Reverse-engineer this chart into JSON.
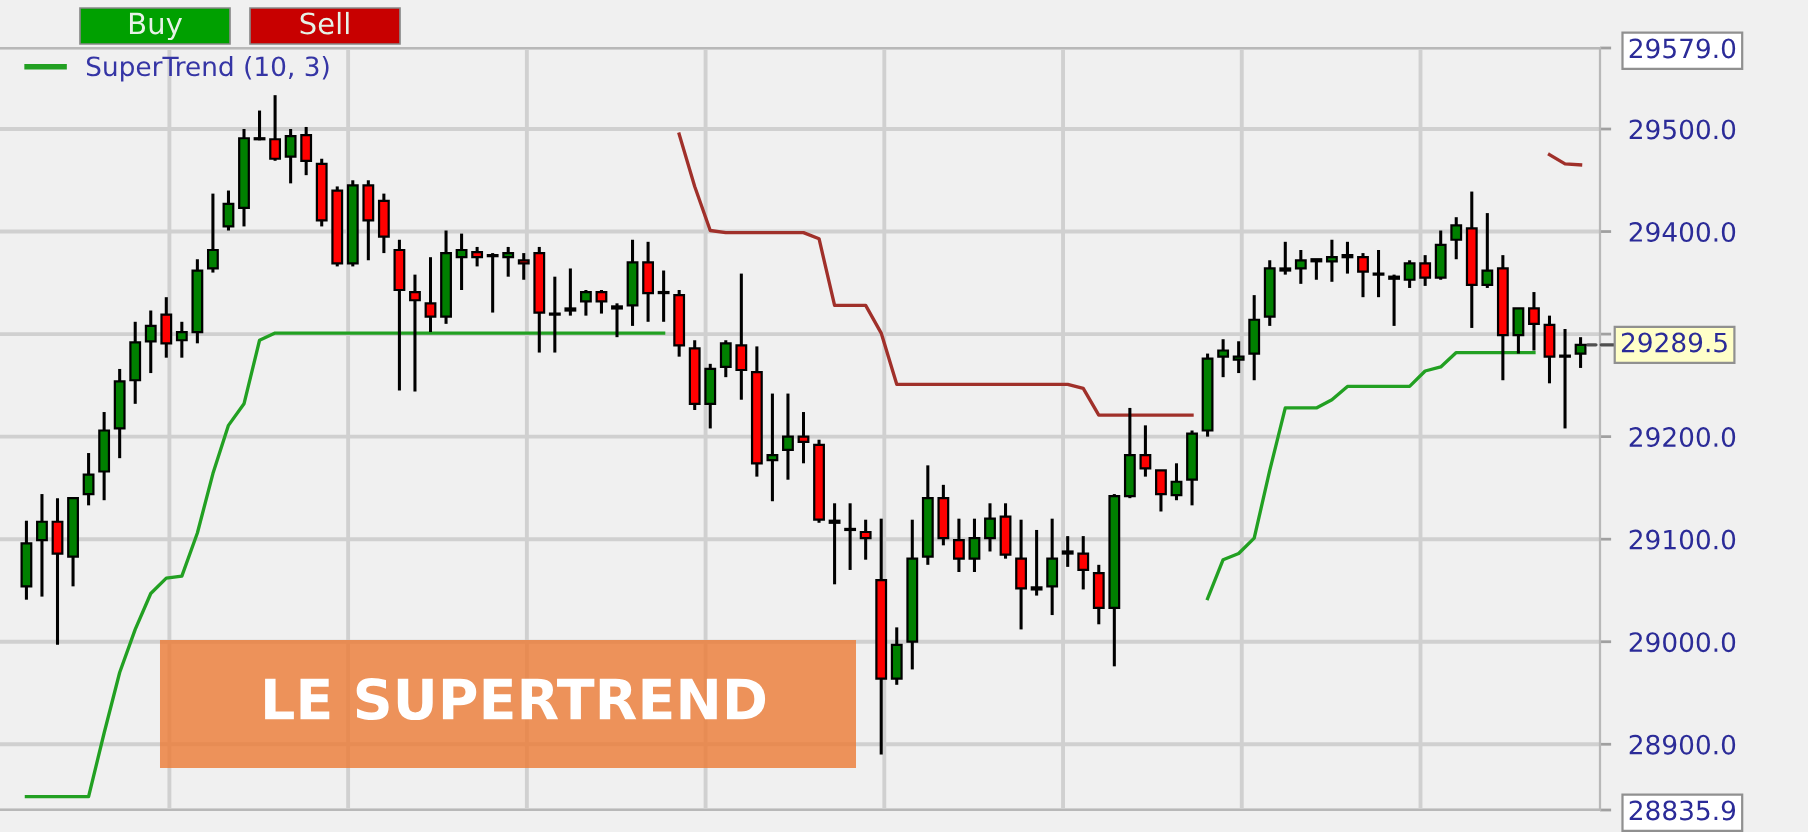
{
  "chart_data": {
    "type": "candlestick",
    "title": "LE SUPERTREND",
    "annotations": [
      "Buy",
      "Sell",
      "29289.5"
    ],
    "categories": [
      null,
      null,
      null,
      null,
      null,
      null,
      null,
      null,
      null,
      null,
      null,
      null,
      null,
      null,
      null,
      null,
      null,
      null,
      null,
      null,
      null,
      null,
      null,
      null,
      null,
      null,
      null,
      null,
      null,
      null,
      null,
      null,
      null,
      null,
      null,
      null,
      null,
      null,
      null,
      null,
      null,
      null,
      null,
      null,
      null,
      null,
      null,
      null,
      null,
      null,
      null,
      null,
      null,
      null,
      null,
      null,
      null,
      null,
      null,
      null,
      null,
      null,
      null,
      null,
      null,
      null,
      null,
      null,
      null,
      null,
      null,
      null,
      null,
      null,
      null,
      null,
      null,
      null,
      null,
      null,
      null,
      null,
      null,
      null,
      null,
      null,
      null,
      null,
      null,
      null,
      null,
      null,
      null,
      null,
      null,
      null,
      null,
      null,
      null,
      null,
      null
    ],
    "ohlc": [
      [
        29054,
        29118,
        29041,
        29096
      ],
      [
        29099,
        29144,
        29044,
        29117
      ],
      [
        29117,
        29140,
        28997,
        29086
      ],
      [
        29083,
        29141,
        29054,
        29140
      ],
      [
        29144,
        29184,
        29133,
        29163
      ],
      [
        29166,
        29224,
        29138,
        29206
      ],
      [
        29208,
        29266,
        29179,
        29254
      ],
      [
        29255,
        29312,
        29232,
        29292
      ],
      [
        29293,
        29323,
        29262,
        29308
      ],
      [
        29319,
        29336,
        29277,
        29291
      ],
      [
        29294,
        29312,
        29277,
        29302
      ],
      [
        29302,
        29373,
        29291,
        29362
      ],
      [
        29364,
        29437,
        29360,
        29382
      ],
      [
        29405,
        29440,
        29401,
        29427
      ],
      [
        29423,
        29500,
        29405,
        29491
      ],
      [
        29491,
        29518,
        29489,
        29490
      ],
      [
        29490,
        29533,
        29469,
        29471
      ],
      [
        29473,
        29500,
        29447,
        29493
      ],
      [
        29494,
        29502,
        29455,
        29469
      ],
      [
        29466,
        29471,
        29405,
        29411
      ],
      [
        29440,
        29444,
        29366,
        29369
      ],
      [
        29369,
        29450,
        29366,
        29445
      ],
      [
        29445,
        29450,
        29372,
        29411
      ],
      [
        29430,
        29437,
        29379,
        29395
      ],
      [
        29382,
        29392,
        29245,
        29343
      ],
      [
        29341,
        29358,
        29244,
        29333
      ],
      [
        29330,
        29375,
        29302,
        29317
      ],
      [
        29317,
        29401,
        29310,
        29379
      ],
      [
        29375,
        29398,
        29343,
        29382
      ],
      [
        29380,
        29385,
        29366,
        29375
      ],
      [
        29377,
        29379,
        29321,
        29376
      ],
      [
        29375,
        29385,
        29356,
        29379
      ],
      [
        29372,
        29379,
        29353,
        29369
      ],
      [
        29379,
        29385,
        29282,
        29321
      ],
      [
        29320,
        29356,
        29282,
        29319
      ],
      [
        29323,
        29364,
        29318,
        29325
      ],
      [
        29332,
        29343,
        29318,
        29341
      ],
      [
        29341,
        29343,
        29320,
        29332
      ],
      [
        29327,
        29330,
        29297,
        29325
      ],
      [
        29328,
        29392,
        29308,
        29370
      ],
      [
        29370,
        29390,
        29312,
        29340
      ],
      [
        29341,
        29362,
        29312,
        29340
      ],
      [
        29338,
        29343,
        29278,
        29289
      ],
      [
        29286,
        29294,
        29226,
        29232
      ],
      [
        29232,
        29271,
        29208,
        29266
      ],
      [
        29268,
        29294,
        29258,
        29291
      ],
      [
        29289,
        29359,
        29236,
        29265
      ],
      [
        29263,
        29288,
        29161,
        29174
      ],
      [
        29177,
        29242,
        29137,
        29182
      ],
      [
        29187,
        29242,
        29158,
        29200
      ],
      [
        29200,
        29224,
        29174,
        29195
      ],
      [
        29192,
        29197,
        29116,
        29119
      ],
      [
        29118,
        29135,
        29056,
        29116
      ],
      [
        29110,
        29135,
        29070,
        29109
      ],
      [
        29107,
        29119,
        29080,
        29101
      ],
      [
        29060,
        29120,
        28890,
        28964
      ],
      [
        28964,
        29014,
        28958,
        28997
      ],
      [
        29000,
        29119,
        28973,
        29081
      ],
      [
        29083,
        29172,
        29075,
        29140
      ],
      [
        29140,
        29153,
        29094,
        29101
      ],
      [
        29099,
        29120,
        29068,
        29081
      ],
      [
        29081,
        29120,
        29068,
        29101
      ],
      [
        29101,
        29135,
        29088,
        29120
      ],
      [
        29122,
        29135,
        29081,
        29085
      ],
      [
        29081,
        29119,
        29012,
        29052
      ],
      [
        29053,
        29109,
        29045,
        29051
      ],
      [
        29054,
        29120,
        29026,
        29081
      ],
      [
        29088,
        29103,
        29073,
        29086
      ],
      [
        29086,
        29103,
        29051,
        29070
      ],
      [
        29067,
        29075,
        29017,
        29033
      ],
      [
        29033,
        29144,
        28976,
        29142
      ],
      [
        29142,
        29228,
        29140,
        29182
      ],
      [
        29182,
        29211,
        29161,
        29169
      ],
      [
        29167,
        29167,
        29127,
        29144
      ],
      [
        29143,
        29174,
        29138,
        29156
      ],
      [
        29158,
        29206,
        29133,
        29203
      ],
      [
        29206,
        29281,
        29200,
        29276
      ],
      [
        29278,
        29295,
        29258,
        29284
      ],
      [
        29275,
        29293,
        29262,
        29278
      ],
      [
        29281,
        29338,
        29255,
        29314
      ],
      [
        29317,
        29372,
        29308,
        29364
      ],
      [
        29364,
        29390,
        29358,
        29362
      ],
      [
        29364,
        29382,
        29349,
        29372
      ],
      [
        29371,
        29373,
        29353,
        29373
      ],
      [
        29371,
        29392,
        29351,
        29375
      ],
      [
        29375,
        29390,
        29359,
        29377
      ],
      [
        29375,
        29379,
        29336,
        29361
      ],
      [
        29359,
        29382,
        29336,
        29358
      ],
      [
        29356,
        29358,
        29308,
        29354
      ],
      [
        29353,
        29372,
        29345,
        29369
      ],
      [
        29369,
        29377,
        29347,
        29355
      ],
      [
        29355,
        29401,
        29353,
        29387
      ],
      [
        29392,
        29414,
        29373,
        29406
      ],
      [
        29403,
        29439,
        29306,
        29348
      ],
      [
        29348,
        29418,
        29345,
        29362
      ],
      [
        29364,
        29377,
        29255,
        29299
      ],
      [
        29299,
        29325,
        29281,
        29325
      ],
      [
        29325,
        29341,
        29284,
        29310
      ],
      [
        29309,
        29318,
        29252,
        29278
      ],
      [
        29279,
        29305,
        29208,
        29278
      ],
      [
        29281,
        29297,
        29267,
        29289.5
      ]
    ],
    "colors": [
      "#008000",
      "#008000",
      "#ff0000",
      "#008000",
      "#008000",
      "#008000",
      "#008000",
      "#008000",
      "#008000",
      "#ff0000",
      "#008000",
      "#008000",
      "#008000",
      "#008000",
      "#008000",
      "#ff0000",
      "#ff0000",
      "#008000",
      "#ff0000",
      "#ff0000",
      "#ff0000",
      "#008000",
      "#ff0000",
      "#ff0000",
      "#ff0000",
      "#ff0000",
      "#ff0000",
      "#008000",
      "#008000",
      "#ff0000",
      "#ff0000",
      "#008000",
      "#ff0000",
      "#ff0000",
      "#ff0000",
      "#008000",
      "#008000",
      "#ff0000",
      "#ff0000",
      "#008000",
      "#ff0000",
      "#ff0000",
      "#ff0000",
      "#ff0000",
      "#008000",
      "#008000",
      "#ff0000",
      "#ff0000",
      "#008000",
      "#008000",
      "#ff0000",
      "#ff0000",
      "#ff0000",
      "#ff0000",
      "#ff0000",
      "#ff0000",
      "#008000",
      "#008000",
      "#008000",
      "#ff0000",
      "#ff0000",
      "#008000",
      "#008000",
      "#ff0000",
      "#ff0000",
      "#ff0000",
      "#008000",
      "#ff0000",
      "#ff0000",
      "#ff0000",
      "#008000",
      "#008000",
      "#ff0000",
      "#ff0000",
      "#008000",
      "#008000",
      "#008000",
      "#008000",
      "#008000",
      "#008000",
      "#008000",
      "#ff0000",
      "#008000",
      "#008000",
      "#008000",
      "#008000",
      "#ff0000",
      "#ff0000",
      "#ff0000",
      "#008000",
      "#ff0000",
      "#008000",
      "#008000",
      "#ff0000",
      "#008000",
      "#ff0000",
      "#008000",
      "#ff0000",
      "#ff0000",
      "#ff0000",
      "#008000"
    ],
    "series": [
      {
        "name": "SuperTrend (10, 3)",
        "type": "line",
        "color": "#22a022",
        "values": [
          28849,
          28849,
          28849,
          28849,
          28849,
          28911,
          28970,
          29012,
          29047,
          29062,
          29064,
          29106,
          29164,
          29211,
          29232,
          29294,
          29301,
          29301,
          29301,
          29301,
          29301,
          29301,
          29301,
          29301,
          29301,
          29301,
          29301,
          29301,
          29301,
          29301,
          29301,
          29301,
          29301,
          29301,
          29301,
          29301,
          29301,
          29301,
          29301,
          29301,
          29301,
          29301,
          null,
          null,
          null,
          null,
          null,
          null,
          null,
          null,
          null,
          null,
          null,
          null,
          null,
          null,
          null,
          null,
          null,
          null,
          null,
          null,
          null,
          null,
          null,
          null,
          null,
          null,
          null,
          null,
          null,
          null,
          null,
          null,
          null,
          null,
          29042,
          29080,
          29086,
          29101,
          29167,
          29228,
          29228,
          29228,
          29236,
          29249,
          29249,
          29249,
          29249,
          29249,
          29264,
          29268,
          29282,
          29282,
          29282,
          29282,
          29282,
          29282,
          null,
          null,
          null
        ]
      },
      {
        "type": "line",
        "color": "#a0302a",
        "values": [
          null,
          null,
          null,
          null,
          null,
          null,
          null,
          null,
          null,
          null,
          null,
          null,
          null,
          null,
          null,
          null,
          null,
          null,
          null,
          null,
          null,
          null,
          null,
          null,
          null,
          null,
          null,
          null,
          null,
          null,
          null,
          null,
          null,
          null,
          null,
          null,
          null,
          null,
          null,
          null,
          null,
          null,
          29495,
          29444,
          29401,
          29399,
          29399,
          29399,
          29399,
          29399,
          29399,
          29393,
          29328,
          29328,
          29328,
          29301,
          29251,
          29251,
          29251,
          29251,
          29251,
          29251,
          29251,
          29251,
          29251,
          29251,
          29251,
          29251,
          29247,
          29221,
          29221,
          29221,
          29221,
          29221,
          29221,
          29221,
          null,
          null,
          null,
          null,
          null,
          null,
          null,
          null,
          null,
          null,
          null,
          null,
          null,
          null,
          null,
          null,
          null,
          null,
          null,
          null,
          null,
          null,
          29475,
          29466,
          29465
        ]
      }
    ],
    "ylim": [
      28835.9,
      29579.0
    ],
    "yticks": [
      {
        "value": 28835.9,
        "label": "28835.9"
      },
      {
        "value": 28900,
        "label": "28900.0"
      },
      {
        "value": 29000,
        "label": "29000.0"
      },
      {
        "value": 29100,
        "label": "29100.0"
      },
      {
        "value": 29200,
        "label": "29200.0"
      },
      {
        "value": 29300,
        "label": null
      },
      {
        "value": 29400,
        "label": "29400.0"
      },
      {
        "value": 29500,
        "label": "29500.0"
      },
      {
        "value": 29579.0,
        "label": "29579.0"
      }
    ],
    "grid": true,
    "legend": "top left",
    "tick_labels": "y"
  }
}
